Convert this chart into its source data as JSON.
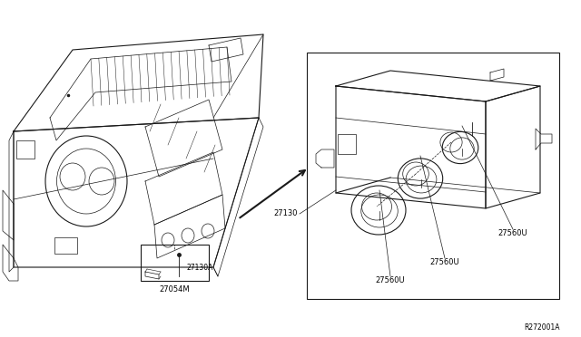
{
  "background_color": "#ffffff",
  "figure_width": 6.4,
  "figure_height": 3.72,
  "dpi": 100,
  "ref_code": "R272001A",
  "text_color": "#000000",
  "line_color": "#1a1a1a",
  "text_fontsize": 6.0,
  "ref_fontsize": 5.5,
  "label_27054M": "27054M",
  "label_27130A": "27130A",
  "label_27130": "27130",
  "label_27560U": "27560U"
}
